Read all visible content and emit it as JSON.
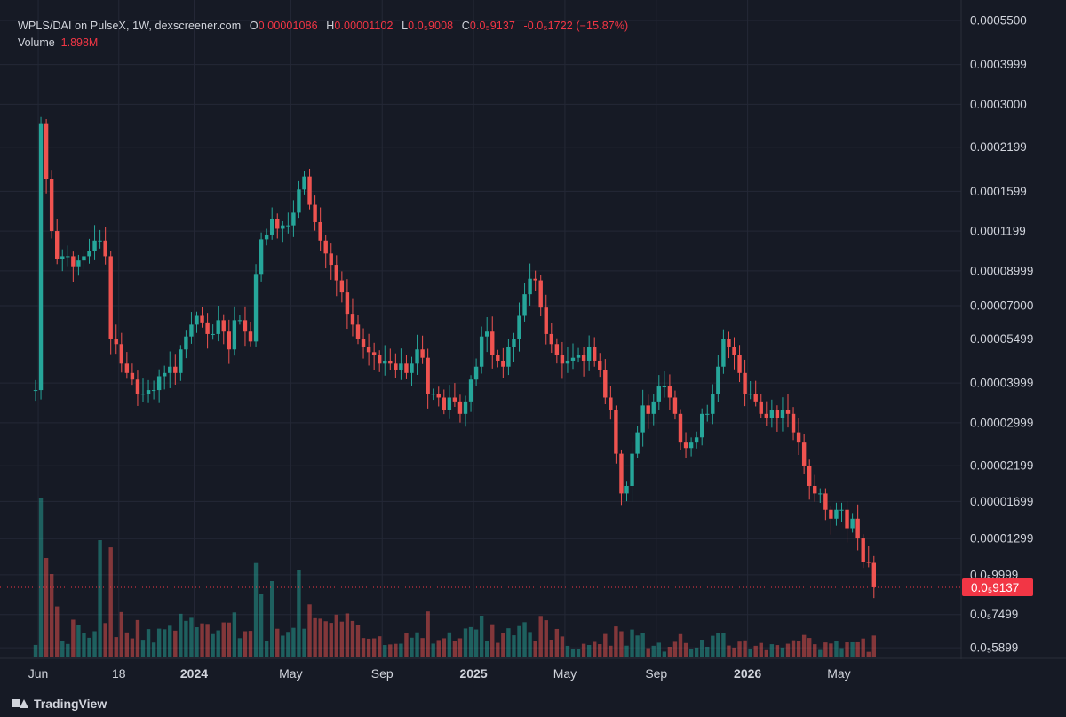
{
  "header": {
    "symbol": "WPLS/DAI on PulseX, 1W, dexscreener.com",
    "open_label": "O",
    "open_value": "0.00001086",
    "high_label": "H",
    "high_value": "0.00001102",
    "low_label": "L",
    "low_value": "0.0₅9008",
    "close_label": "C",
    "close_value": "0.0₅9137",
    "change_value": "-0.0₅1722 (−15.87%)",
    "volume_label": "Volume",
    "volume_value": "1.898M"
  },
  "footer": {
    "brand": "TradingView"
  },
  "colors": {
    "up": "#26a69a",
    "down": "#ef5350",
    "background": "#161a25",
    "grid": "#242836",
    "text": "#d1d4dc",
    "price_tag": "#f23645"
  },
  "chart_data": {
    "type": "candlestick",
    "scale": "log",
    "grid": true,
    "ylim": [
      5.5e-06,
      0.00055
    ],
    "y_ticks": [
      {
        "label": "0.0005500",
        "value": 0.00055
      },
      {
        "label": "0.0003999",
        "value": 0.0003999
      },
      {
        "label": "0.0003000",
        "value": 0.0003
      },
      {
        "label": "0.0002199",
        "value": 0.0002199
      },
      {
        "label": "0.0001599",
        "value": 0.0001599
      },
      {
        "label": "0.0001199",
        "value": 0.0001199
      },
      {
        "label": "0.00008999",
        "value": 8.999e-05
      },
      {
        "label": "0.00007000",
        "value": 7e-05
      },
      {
        "label": "0.00005499",
        "value": 5.499e-05
      },
      {
        "label": "0.00003999",
        "value": 3.999e-05
      },
      {
        "label": "0.00002999",
        "value": 2.999e-05
      },
      {
        "label": "0.00002199",
        "value": 2.199e-05
      },
      {
        "label": "0.00001699",
        "value": 1.699e-05
      },
      {
        "label": "0.00001299",
        "value": 1.299e-05
      },
      {
        "label": "0.0₅9999",
        "value": 9.999e-06
      },
      {
        "label": "0.0₅7499",
        "value": 7.499e-06
      },
      {
        "label": "0.0₅5899",
        "value": 5.899e-06
      }
    ],
    "x_ticks": [
      {
        "label": "Jun",
        "week": 0.5,
        "bold": false
      },
      {
        "label": "18",
        "week": 15.5,
        "bold": false
      },
      {
        "label": "2024",
        "week": 29.5,
        "bold": true
      },
      {
        "label": "May",
        "week": 47.5,
        "bold": false
      },
      {
        "label": "Sep",
        "week": 64.5,
        "bold": false
      },
      {
        "label": "2025",
        "week": 81.5,
        "bold": true
      },
      {
        "label": "May",
        "week": 98.5,
        "bold": false
      },
      {
        "label": "Sep",
        "week": 115.5,
        "bold": false
      },
      {
        "label": "2026",
        "week": 132.5,
        "bold": true
      },
      {
        "label": "May",
        "week": 149.5,
        "bold": false
      }
    ],
    "last_price": {
      "label": "0.0₅9137",
      "value": 9.137e-06
    },
    "close": [
      3.8e-05,
      0.00026,
      0.000175,
      0.00012,
      9.8e-05,
      0.0001,
      0.0001,
      9.3e-05,
      9.7e-05,
      0.0001,
      0.000104,
      0.000112,
      0.000112,
      0.0001,
      5.5e-05,
      5.3e-05,
      4.6e-05,
      4.3e-05,
      4.1e-05,
      3.7e-05,
      3.7e-05,
      3.8e-05,
      3.8e-05,
      4.2e-05,
      4.3e-05,
      4.5e-05,
      4.3e-05,
      5.1e-05,
      5.6e-05,
      6.1e-05,
      6.5e-05,
      6.2e-05,
      5.7e-05,
      5.7e-05,
      6.3e-05,
      5.8e-05,
      5.1e-05,
      6.3e-05,
      6.3e-05,
      5.8e-05,
      5.4e-05,
      8.8e-05,
      0.000113,
      0.000117,
      0.000131,
      0.000122,
      0.000125,
      0.000125,
      0.000137,
      0.000162,
      0.000178,
      0.000145,
      0.000128,
      0.000112,
      0.000102,
      9.4e-05,
      8.4e-05,
      7.7e-05,
      6.6e-05,
      6.1e-05,
      5.5e-05,
      5.2e-05,
      5e-05,
      4.9e-05,
      4.6e-05,
      4.7e-05,
      4.6e-05,
      4.4e-05,
      4.6e-05,
      4.3e-05,
      4.6e-05,
      5.1e-05,
      4.8e-05,
      3.7e-05,
      3.7e-05,
      3.6e-05,
      3.3e-05,
      3.6e-05,
      3.5e-05,
      3.2e-05,
      3.5e-05,
      4.1e-05,
      4.5e-05,
      5.6e-05,
      5.8e-05,
      4.9e-05,
      4.7e-05,
      4.5e-05,
      5.2e-05,
      5.5e-05,
      6.5e-05,
      7.6e-05,
      8.5e-05,
      8.4e-05,
      6.9e-05,
      5.7e-05,
      5.3e-05,
      4.9e-05,
      4.6e-05,
      4.7e-05,
      4.8e-05,
      4.9e-05,
      4.7e-05,
      5.2e-05,
      4.7e-05,
      4.4e-05,
      3.6e-05,
      3.3e-05,
      2.4e-05,
      1.8e-05,
      1.9e-05,
      2.4e-05,
      2.8e-05,
      3.4e-05,
      3.2e-05,
      3.5e-05,
      3.9e-05,
      3.9e-05,
      3.6e-05,
      3.2e-05,
      2.6e-05,
      2.5e-05,
      2.6e-05,
      2.7e-05,
      3.2e-05,
      3.2e-05,
      3.7e-05,
      4.5e-05,
      5.5e-05,
      5.2e-05,
      4.9e-05,
      4.3e-05,
      3.7e-05,
      3.7e-05,
      3.5e-05,
      3.2e-05,
      3.1e-05,
      3.3e-05,
      3.1e-05,
      3.3e-05,
      3.2e-05,
      2.8e-05,
      2.6e-05,
      2.2e-05,
      1.9e-05,
      1.8e-05,
      1.8e-05,
      1.6e-05,
      1.5e-05,
      1.6e-05,
      1.6e-05,
      1.4e-05,
      1.5e-05,
      1.3e-05,
      1.1e-05,
      1.09e-05,
      9.137e-06
    ]
  }
}
